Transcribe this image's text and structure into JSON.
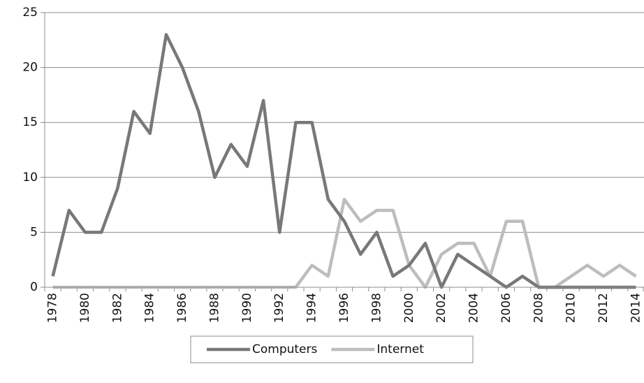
{
  "chart_data": {
    "type": "line",
    "categories": [
      "1978",
      null,
      "1980",
      null,
      "1982",
      null,
      "1984",
      null,
      "1986",
      null,
      "1988",
      null,
      "1990",
      null,
      "1992",
      null,
      "1994",
      null,
      "1996",
      null,
      "1998",
      null,
      "2000",
      null,
      "2002",
      null,
      "2004",
      null,
      "2006",
      null,
      "2008",
      null,
      "2010",
      null,
      "2012",
      null,
      "2014"
    ],
    "series": [
      {
        "name": "Computers",
        "color": "#787878",
        "values": [
          1,
          7,
          5,
          5,
          9,
          16,
          14,
          23,
          20,
          16,
          10,
          13,
          11,
          17,
          5,
          15,
          15,
          8,
          6,
          3,
          5,
          1,
          2,
          4,
          0,
          3,
          2,
          1,
          0,
          1,
          0,
          0,
          0,
          0,
          0,
          0,
          0
        ]
      },
      {
        "name": "Internet",
        "color": "#bdbdbd",
        "values": [
          0,
          0,
          0,
          0,
          0,
          0,
          0,
          0,
          0,
          0,
          0,
          0,
          0,
          0,
          0,
          0,
          2,
          1,
          8,
          6,
          7,
          7,
          2,
          0,
          3,
          4,
          4,
          1,
          6,
          6,
          0,
          0,
          1,
          2,
          1,
          2,
          1
        ]
      }
    ],
    "ylim": [
      0,
      25
    ],
    "yticks": [
      0,
      5,
      10,
      15,
      20,
      25
    ],
    "grid": true,
    "legend": "bottom"
  }
}
